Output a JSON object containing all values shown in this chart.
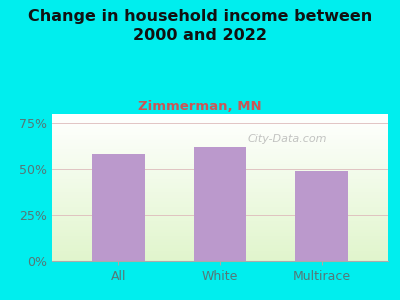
{
  "title": "Change in household income between\n2000 and 2022",
  "subtitle": "Zimmerman, MN",
  "categories": [
    "All",
    "White",
    "Multirace"
  ],
  "values": [
    58,
    62,
    49
  ],
  "bar_color": "#bb99cc",
  "background_color": "#00eeee",
  "yticks": [
    0,
    25,
    50,
    75
  ],
  "ytick_labels": [
    "0%",
    "25%",
    "50%",
    "75%"
  ],
  "ylim": [
    0,
    80
  ],
  "title_fontsize": 11.5,
  "subtitle_fontsize": 9.5,
  "tick_fontsize": 9,
  "watermark": "City-Data.com",
  "subtitle_color": "#cc5555",
  "title_color": "#111111",
  "ytick_color": "#557777",
  "xtick_color": "#557777"
}
